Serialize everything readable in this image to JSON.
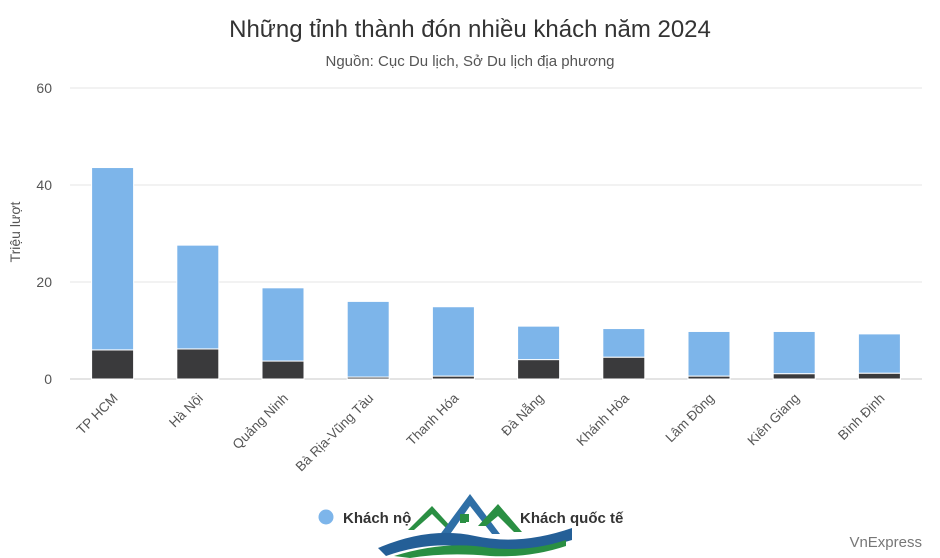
{
  "chart_data": {
    "type": "bar",
    "stacked": true,
    "title": "Những tỉnh thành đón nhiều khách năm 2024",
    "subtitle": "Nguồn: Cục Du lịch, Sở Du lịch địa phương",
    "ylabel": "Triệu lượt",
    "xlabel": "",
    "ylim": [
      0,
      60
    ],
    "yticks": [
      0,
      20,
      40,
      60
    ],
    "grid": true,
    "legend_position": "bottom",
    "categories": [
      "TP HCM",
      "Hà Nội",
      "Quảng Ninh",
      "Bà Rịa-Vũng Tàu",
      "Thanh Hóa",
      "Đà Nẵng",
      "Khánh Hòa",
      "Lâm Đồng",
      "Kiên Giang",
      "Bình Định"
    ],
    "series": [
      {
        "name": "Khách quốc tế",
        "color": "#3a3a3c",
        "values": [
          6,
          6.2,
          3.7,
          0.4,
          0.6,
          4,
          4.5,
          0.6,
          1.1,
          1.2
        ]
      },
      {
        "name": "Khách nội",
        "color": "#7db5ea",
        "values": [
          37.6,
          21.4,
          15.1,
          15.6,
          14.3,
          6.9,
          5.9,
          9.2,
          8.7,
          8.1
        ]
      }
    ],
    "legend_labels": [
      "Khách nộ",
      "Khách quốc tế"
    ],
    "credit": "VnExpress"
  }
}
